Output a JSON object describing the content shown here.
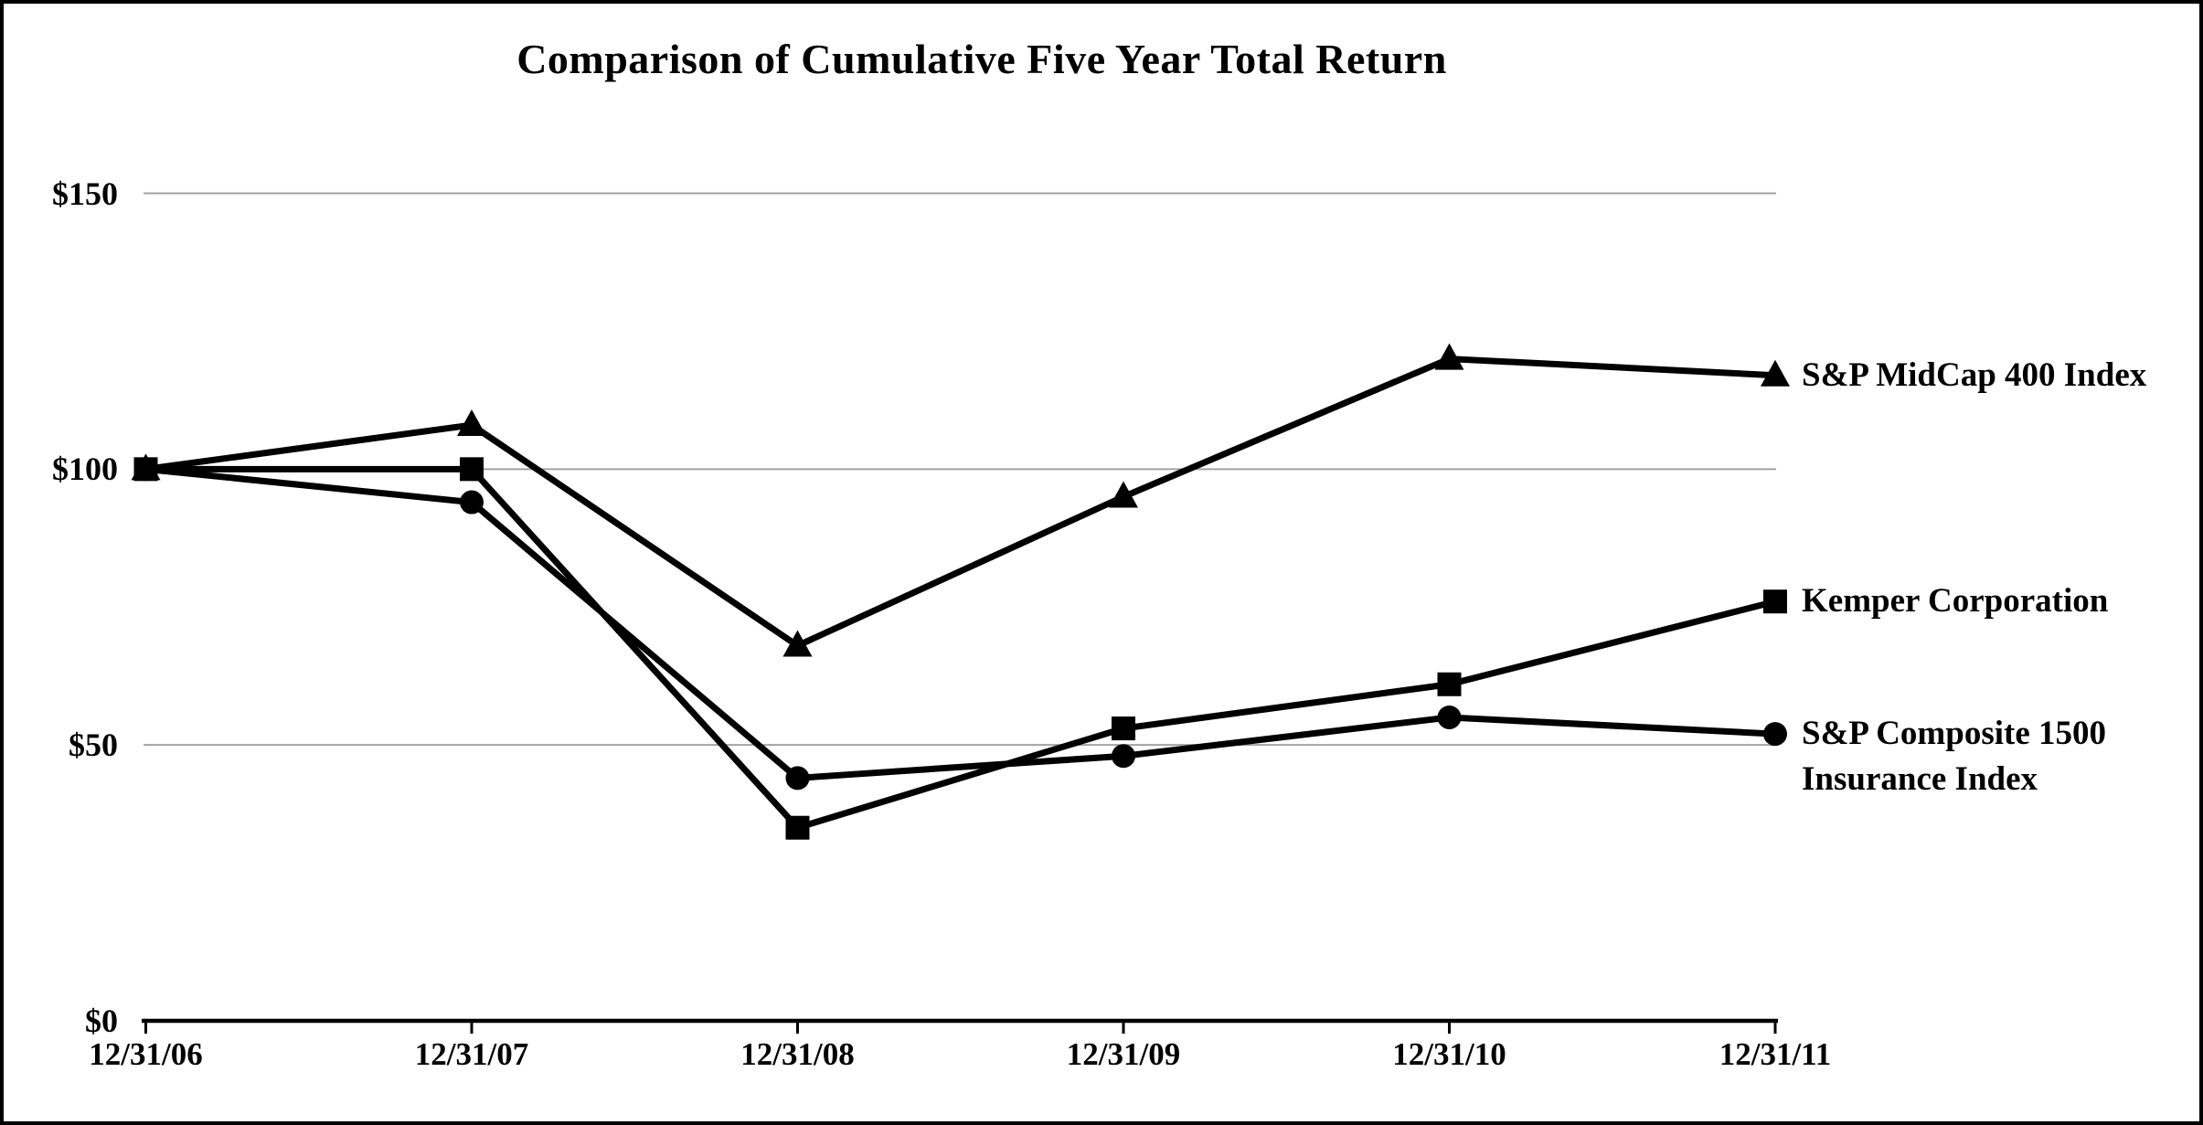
{
  "chart_data": {
    "type": "line",
    "title": "Comparison of Cumulative Five Year Total Return",
    "x_labels": [
      "12/31/06",
      "12/31/07",
      "12/31/08",
      "12/31/09",
      "12/31/10",
      "12/31/11"
    ],
    "y_ticks": [
      {
        "label": "$150",
        "value": 150
      },
      {
        "label": "$100",
        "value": 100
      },
      {
        "label": "$50",
        "value": 50
      },
      {
        "label": "$0",
        "value": 0
      }
    ],
    "ylim": [
      0,
      150
    ],
    "grid": "horizontal-gridlines-on",
    "legend_position": "right-of-last-point",
    "series": [
      {
        "name": "S&P MidCap 400 Index",
        "marker": "triangle",
        "color": "#000000",
        "values": [
          100,
          108,
          68,
          95,
          120,
          117
        ]
      },
      {
        "name": "S&P Composite 1500 Insurance Index",
        "marker": "circle",
        "color": "#000000",
        "values": [
          100,
          94,
          44,
          48,
          55,
          52
        ]
      },
      {
        "name": "Kemper Corporation",
        "marker": "square",
        "color": "#000000",
        "values": [
          100,
          100,
          35,
          53,
          61,
          76
        ]
      }
    ]
  },
  "legend_items": [
    {
      "series_index": 0,
      "lines": [
        "S&P MidCap 400 Index"
      ]
    },
    {
      "series_index": 2,
      "lines": [
        "Kemper Corporation"
      ]
    },
    {
      "series_index": 1,
      "lines": [
        "S&P Composite 1500",
        "Insurance Index"
      ]
    }
  ],
  "colors": {
    "line": "#000000",
    "grid": "#a3a3a3",
    "axis": "#000000",
    "text": "#000000",
    "background": "#ffffff",
    "page_border": "#000000"
  }
}
